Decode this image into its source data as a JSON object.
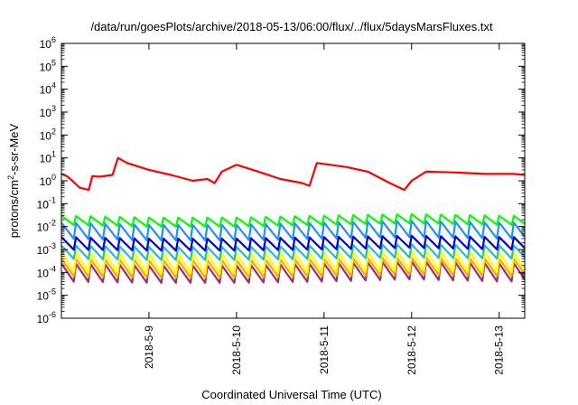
{
  "chart_data": {
    "type": "line",
    "title": "/data/run/goesPlots/archive/2018-05-13/06:00/flux/../flux/5daysMarsFluxes.txt",
    "xlabel": "Coordinated Universal Time (UTC)",
    "ylabel": "protons/cm2-s-sr-MeV",
    "ylabel_parts": {
      "before": "protons/cm",
      "sup": "2",
      "after": "-s-sr-MeV"
    },
    "y_scale": "log",
    "ylim": [
      1e-06,
      1000000.0
    ],
    "xlim": [
      "2018-05-08 00:00",
      "2018-05-13 07:00"
    ],
    "x_ticks": [
      "2018-5-9",
      "2018-5-10",
      "2018-5-11",
      "2018-5-12",
      "2018-5-13"
    ],
    "y_ticks": [
      {
        "base": "10",
        "exp": "-6"
      },
      {
        "base": "10",
        "exp": "-5"
      },
      {
        "base": "10",
        "exp": "-4"
      },
      {
        "base": "10",
        "exp": "-3"
      },
      {
        "base": "10",
        "exp": "-2"
      },
      {
        "base": "10",
        "exp": "-1"
      },
      {
        "base": "10",
        "exp": "0"
      },
      {
        "base": "10",
        "exp": "1"
      },
      {
        "base": "10",
        "exp": "2"
      },
      {
        "base": "10",
        "exp": "3"
      },
      {
        "base": "10",
        "exp": "4"
      },
      {
        "base": "10",
        "exp": "5"
      },
      {
        "base": "10",
        "exp": "6"
      }
    ],
    "grid": false,
    "legend": "none",
    "series": [
      {
        "color": "#ff0000",
        "points": [
          [
            "2018-05-08 00:00",
            2.0
          ],
          [
            "2018-05-08 01:30",
            1.6
          ],
          [
            "2018-05-08 03:00",
            1.0
          ],
          [
            "2018-05-08 05:00",
            0.5
          ],
          [
            "2018-05-08 07:30",
            0.4
          ],
          [
            "2018-05-08 08:30",
            1.6
          ],
          [
            "2018-05-08 10:30",
            1.5
          ],
          [
            "2018-05-08 14:00",
            1.8
          ],
          [
            "2018-05-08 15:30",
            10
          ],
          [
            "2018-05-08 18:00",
            6
          ],
          [
            "2018-05-09 00:00",
            3
          ],
          [
            "2018-05-09 06:00",
            1.8
          ],
          [
            "2018-05-09 12:00",
            1.0
          ],
          [
            "2018-05-09 16:00",
            1.2
          ],
          [
            "2018-05-09 18:00",
            0.8
          ],
          [
            "2018-05-09 20:00",
            2.5
          ],
          [
            "2018-05-10 00:00",
            5
          ],
          [
            "2018-05-10 06:00",
            2.5
          ],
          [
            "2018-05-10 12:00",
            1.2
          ],
          [
            "2018-05-10 18:00",
            0.8
          ],
          [
            "2018-05-10 20:00",
            0.6
          ],
          [
            "2018-05-10 22:00",
            6
          ],
          [
            "2018-05-11 06:00",
            4
          ],
          [
            "2018-05-11 12:00",
            2.5
          ],
          [
            "2018-05-11 18:00",
            0.8
          ],
          [
            "2018-05-11 22:00",
            0.4
          ],
          [
            "2018-05-12 00:00",
            1.0
          ],
          [
            "2018-05-12 04:00",
            2.5
          ],
          [
            "2018-05-12 12:00",
            2.3
          ],
          [
            "2018-05-12 20:00",
            2.0
          ],
          [
            "2018-05-13 04:00",
            2.0
          ],
          [
            "2018-05-13 07:00",
            1.8
          ]
        ]
      },
      {
        "color": "#00ff00",
        "points": [
          [
            "2018-05-08 00:00",
            0.03
          ],
          [
            "2018-05-09 00:00",
            0.025
          ],
          [
            "2018-05-10 00:00",
            0.025
          ],
          [
            "2018-05-11 00:00",
            0.03
          ],
          [
            "2018-05-12 00:00",
            0.035
          ],
          [
            "2018-05-13 00:00",
            0.03
          ],
          [
            "2018-05-13 07:00",
            0.03
          ]
        ],
        "min": [
          [
            "2018-05-08 00:00",
            0.012
          ],
          [
            "2018-05-09 00:00",
            0.01
          ],
          [
            "2018-05-10 00:00",
            0.01
          ],
          [
            "2018-05-11 00:00",
            0.012
          ],
          [
            "2018-05-12 00:00",
            0.014
          ],
          [
            "2018-05-13 00:00",
            0.012
          ],
          [
            "2018-05-13 07:00",
            0.012
          ]
        ]
      },
      {
        "color": "#1e90ff",
        "points": [
          [
            "2018-05-08 00:00",
            0.015
          ],
          [
            "2018-05-09 00:00",
            0.012
          ],
          [
            "2018-05-10 00:00",
            0.012
          ],
          [
            "2018-05-11 00:00",
            0.015
          ],
          [
            "2018-05-12 00:00",
            0.018
          ],
          [
            "2018-05-13 00:00",
            0.015
          ],
          [
            "2018-05-13 07:00",
            0.015
          ]
        ],
        "min": [
          [
            "2018-05-08 00:00",
            0.003
          ],
          [
            "2018-05-09 00:00",
            0.0025
          ],
          [
            "2018-05-10 00:00",
            0.0025
          ],
          [
            "2018-05-11 00:00",
            0.003
          ],
          [
            "2018-05-12 00:00",
            0.0035
          ],
          [
            "2018-05-13 00:00",
            0.003
          ],
          [
            "2018-05-13 07:00",
            0.003
          ]
        ]
      },
      {
        "color": "#0000cd",
        "points": [
          [
            "2018-05-08 00:00",
            0.0035
          ],
          [
            "2018-05-09 00:00",
            0.003
          ],
          [
            "2018-05-10 00:00",
            0.003
          ],
          [
            "2018-05-11 00:00",
            0.0035
          ],
          [
            "2018-05-12 00:00",
            0.004
          ],
          [
            "2018-05-13 00:00",
            0.0035
          ],
          [
            "2018-05-13 07:00",
            0.0035
          ]
        ],
        "min": [
          [
            "2018-05-08 00:00",
            0.001
          ],
          [
            "2018-05-09 00:00",
            0.0009
          ],
          [
            "2018-05-10 00:00",
            0.0009
          ],
          [
            "2018-05-11 00:00",
            0.001
          ],
          [
            "2018-05-12 00:00",
            0.0012
          ],
          [
            "2018-05-13 00:00",
            0.001
          ],
          [
            "2018-05-13 07:00",
            0.001
          ]
        ]
      },
      {
        "color": "#20c0c0",
        "points": [
          [
            "2018-05-08 00:00",
            0.0015
          ],
          [
            "2018-05-09 00:00",
            0.0013
          ],
          [
            "2018-05-10 00:00",
            0.0013
          ],
          [
            "2018-05-11 00:00",
            0.0015
          ],
          [
            "2018-05-12 00:00",
            0.0017
          ],
          [
            "2018-05-13 00:00",
            0.0015
          ],
          [
            "2018-05-13 07:00",
            0.0015
          ]
        ],
        "min": [
          [
            "2018-05-08 00:00",
            0.0004
          ],
          [
            "2018-05-09 00:00",
            0.00035
          ],
          [
            "2018-05-10 00:00",
            0.00035
          ],
          [
            "2018-05-11 00:00",
            0.0004
          ],
          [
            "2018-05-12 00:00",
            0.00045
          ],
          [
            "2018-05-13 00:00",
            0.0004
          ],
          [
            "2018-05-13 07:00",
            0.0004
          ]
        ]
      },
      {
        "color": "#ffff00",
        "points": [
          [
            "2018-05-08 00:00",
            0.0008
          ],
          [
            "2018-05-09 00:00",
            0.0007
          ],
          [
            "2018-05-10 00:00",
            0.0007
          ],
          [
            "2018-05-11 00:00",
            0.0008
          ],
          [
            "2018-05-12 00:00",
            0.0009
          ],
          [
            "2018-05-13 00:00",
            0.0008
          ],
          [
            "2018-05-13 07:00",
            0.0008
          ]
        ],
        "min": [
          [
            "2018-05-08 00:00",
            0.0001
          ],
          [
            "2018-05-09 00:00",
            9e-05
          ],
          [
            "2018-05-10 00:00",
            9e-05
          ],
          [
            "2018-05-11 00:00",
            0.0001
          ],
          [
            "2018-05-12 00:00",
            0.00012
          ],
          [
            "2018-05-13 00:00",
            0.0001
          ],
          [
            "2018-05-13 07:00",
            0.0001
          ]
        ]
      },
      {
        "color": "#ffa500",
        "points": [
          [
            "2018-05-08 00:00",
            0.0004
          ],
          [
            "2018-05-09 00:00",
            0.00035
          ],
          [
            "2018-05-10 00:00",
            0.00035
          ],
          [
            "2018-05-11 00:00",
            0.0004
          ],
          [
            "2018-05-12 00:00",
            0.00045
          ],
          [
            "2018-05-13 00:00",
            0.0004
          ],
          [
            "2018-05-13 07:00",
            0.0004
          ]
        ],
        "min": [
          [
            "2018-05-08 00:00",
            7e-05
          ],
          [
            "2018-05-09 00:00",
            6e-05
          ],
          [
            "2018-05-10 00:00",
            6e-05
          ],
          [
            "2018-05-11 00:00",
            7e-05
          ],
          [
            "2018-05-12 00:00",
            8e-05
          ],
          [
            "2018-05-13 00:00",
            7e-05
          ],
          [
            "2018-05-13 07:00",
            7e-05
          ]
        ]
      },
      {
        "color": "#9b3070",
        "points": [
          [
            "2018-05-08 00:00",
            0.00025
          ],
          [
            "2018-05-09 00:00",
            0.0002
          ],
          [
            "2018-05-10 00:00",
            0.0002
          ],
          [
            "2018-05-11 00:00",
            0.00025
          ],
          [
            "2018-05-12 00:00",
            0.0003
          ],
          [
            "2018-05-13 00:00",
            0.00025
          ],
          [
            "2018-05-13 07:00",
            0.00025
          ]
        ],
        "min": [
          [
            "2018-05-08 00:00",
            4e-05
          ],
          [
            "2018-05-09 00:00",
            3.5e-05
          ],
          [
            "2018-05-10 00:00",
            3.5e-05
          ],
          [
            "2018-05-11 00:00",
            4e-05
          ],
          [
            "2018-05-12 00:00",
            5e-05
          ],
          [
            "2018-05-13 00:00",
            4e-05
          ],
          [
            "2018-05-13 07:00",
            4e-05
          ]
        ]
      }
    ],
    "sawtooth_teeth_per_day": 6
  }
}
